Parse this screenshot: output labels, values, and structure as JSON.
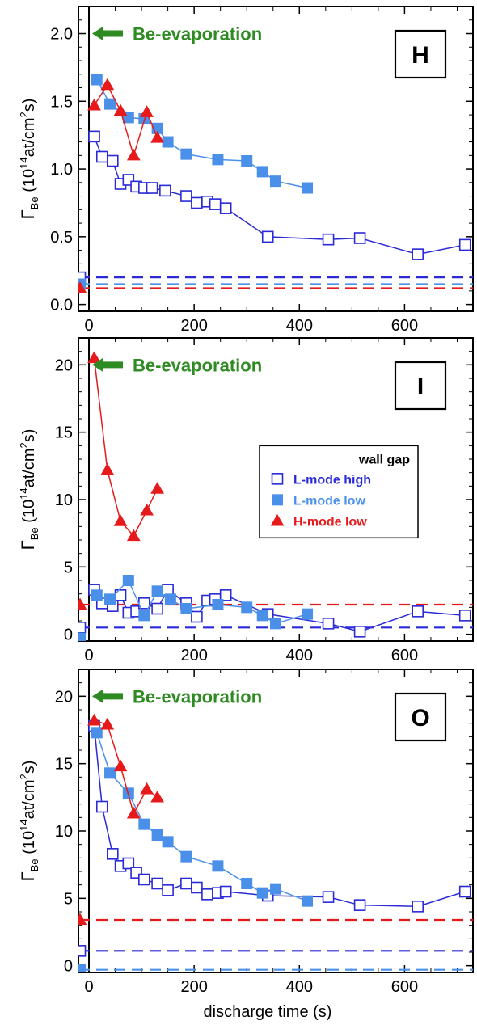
{
  "chart_data": [
    {
      "type": "line",
      "panel_label": "H",
      "annotation": "Be-evaporation",
      "annotation_y": 2.0,
      "ylabel": "Γ",
      "ylabel_sub": "Be",
      "yunit_prefix": "(10",
      "yunit_exp1": "14",
      "yunit_mid": "at/cm",
      "yunit_exp2": "2",
      "yunit_suffix": "s)",
      "xlabel": "",
      "xlim": [
        -20,
        730
      ],
      "ylim": [
        -0.05,
        2.2
      ],
      "xticks": [
        {
          "v": 0,
          "label": "0"
        },
        {
          "v": 200,
          "label": "200"
        },
        {
          "v": 400,
          "label": "400"
        },
        {
          "v": 600,
          "label": "600"
        }
      ],
      "yticks": [
        {
          "v": 0,
          "label": "0.0"
        },
        {
          "v": 0.5,
          "label": "0.5"
        },
        {
          "v": 1.0,
          "label": "1.0"
        },
        {
          "v": 1.5,
          "label": "1.5"
        },
        {
          "v": 2.0,
          "label": "2.0"
        }
      ],
      "series": [
        {
          "name": "L-mode high",
          "marker": "open-square",
          "color": "#2a2ad6",
          "x": [
            10,
            25,
            45,
            60,
            75,
            90,
            105,
            120,
            145,
            185,
            205,
            225,
            240,
            260,
            340,
            455,
            515,
            625,
            715
          ],
          "y": [
            1.24,
            1.09,
            1.06,
            0.89,
            0.92,
            0.87,
            0.86,
            0.86,
            0.84,
            0.8,
            0.75,
            0.76,
            0.74,
            0.71,
            0.5,
            0.48,
            0.49,
            0.37,
            0.44
          ]
        },
        {
          "name": "L-mode low",
          "marker": "filled-square",
          "color": "#4a90e8",
          "x": [
            15,
            40,
            75,
            105,
            130,
            150,
            185,
            245,
            300,
            330,
            355,
            415
          ],
          "y": [
            1.66,
            1.48,
            1.38,
            1.37,
            1.3,
            1.2,
            1.11,
            1.07,
            1.06,
            0.98,
            0.91,
            0.86
          ]
        },
        {
          "name": "H-mode low",
          "marker": "filled-triangle",
          "color": "#e61a1a",
          "x": [
            10,
            35,
            60,
            85,
            110,
            130
          ],
          "y": [
            1.47,
            1.62,
            1.43,
            1.1,
            1.42,
            1.23
          ]
        }
      ],
      "baselines": [
        {
          "y": 0.2,
          "color": "#2a2ad6"
        },
        {
          "y": 0.15,
          "color": "#4a90e8"
        },
        {
          "y": 0.12,
          "color": "#e61a1a"
        }
      ],
      "edge_points": [
        {
          "y": 0.2,
          "marker": "open-square",
          "color": "#2a2ad6"
        },
        {
          "y": 0.15,
          "marker": "filled-square",
          "color": "#4a90e8"
        },
        {
          "y": 0.12,
          "marker": "filled-triangle",
          "color": "#e61a1a"
        }
      ]
    },
    {
      "type": "line",
      "panel_label": "I",
      "annotation": "Be-evaporation",
      "annotation_y": 20,
      "ylabel": "Γ",
      "ylabel_sub": "Be",
      "yunit_prefix": "(10",
      "yunit_exp1": "14",
      "yunit_mid": "at/cm",
      "yunit_exp2": "2",
      "yunit_suffix": "s)",
      "xlabel": "",
      "xlim": [
        -20,
        730
      ],
      "ylim": [
        -0.5,
        22
      ],
      "xticks": [
        {
          "v": 0,
          "label": "0"
        },
        {
          "v": 200,
          "label": "200"
        },
        {
          "v": 400,
          "label": "400"
        },
        {
          "v": 600,
          "label": "600"
        }
      ],
      "yticks": [
        {
          "v": 0,
          "label": "0"
        },
        {
          "v": 5,
          "label": "5"
        },
        {
          "v": 10,
          "label": "10"
        },
        {
          "v": 15,
          "label": "15"
        },
        {
          "v": 20,
          "label": "20"
        }
      ],
      "legend": {
        "title": "wall gap",
        "entries": [
          {
            "label": "L-mode  high",
            "marker": "open-square",
            "color": "#2a2ad6"
          },
          {
            "label": "L-mode  low",
            "marker": "filled-square",
            "color": "#4a90e8"
          },
          {
            "label": "H-mode  low",
            "marker": "filled-triangle",
            "color": "#e61a1a"
          }
        ]
      },
      "series": [
        {
          "name": "L-mode high",
          "marker": "open-square",
          "color": "#2a2ad6",
          "x": [
            10,
            25,
            45,
            60,
            75,
            90,
            105,
            130,
            150,
            185,
            205,
            225,
            240,
            260,
            340,
            455,
            515,
            625,
            715
          ],
          "y": [
            3.3,
            2.3,
            2.1,
            2.9,
            1.6,
            1.7,
            2.3,
            1.9,
            3.3,
            2.3,
            1.3,
            2.5,
            2.6,
            2.9,
            1.5,
            0.8,
            0.2,
            1.7,
            1.4
          ]
        },
        {
          "name": "L-mode low",
          "marker": "filled-square",
          "color": "#4a90e8",
          "x": [
            15,
            40,
            75,
            105,
            130,
            155,
            185,
            245,
            300,
            330,
            355,
            415
          ],
          "y": [
            2.9,
            2.6,
            4.0,
            1.4,
            3.2,
            2.6,
            1.9,
            2.2,
            2.0,
            1.4,
            0.8,
            1.5
          ]
        },
        {
          "name": "H-mode low",
          "marker": "filled-triangle",
          "color": "#e61a1a",
          "x": [
            10,
            35,
            60,
            85,
            110,
            130
          ],
          "y": [
            20.5,
            12.2,
            8.4,
            7.3,
            9.2,
            10.8
          ]
        }
      ],
      "baselines": [
        {
          "y": 2.2,
          "color": "#e61a1a"
        },
        {
          "y": 0.5,
          "color": "#2a2ad6"
        }
      ],
      "edge_points": [
        {
          "y": 2.2,
          "marker": "filled-triangle",
          "color": "#e61a1a"
        },
        {
          "y": 0.5,
          "marker": "open-square",
          "color": "#2a2ad6"
        },
        {
          "y": -0.3,
          "marker": "filled-square",
          "color": "#4a90e8"
        }
      ]
    },
    {
      "type": "line",
      "panel_label": "O",
      "annotation": "Be-evaporation",
      "annotation_y": 20,
      "ylabel": "Γ",
      "ylabel_sub": "Be",
      "yunit_prefix": "(10",
      "yunit_exp1": "14",
      "yunit_mid": "at/cm",
      "yunit_exp2": "2",
      "yunit_suffix": "s)",
      "xlabel": "discharge time (s)",
      "xlim": [
        -20,
        730
      ],
      "ylim": [
        -0.5,
        22
      ],
      "xticks": [
        {
          "v": 0,
          "label": "0"
        },
        {
          "v": 200,
          "label": "200"
        },
        {
          "v": 400,
          "label": "400"
        },
        {
          "v": 600,
          "label": "600"
        }
      ],
      "yticks": [
        {
          "v": 0,
          "label": "0"
        },
        {
          "v": 5,
          "label": "5"
        },
        {
          "v": 10,
          "label": "10"
        },
        {
          "v": 15,
          "label": "15"
        },
        {
          "v": 20,
          "label": "20"
        }
      ],
      "series": [
        {
          "name": "L-mode high",
          "marker": "open-square",
          "color": "#2a2ad6",
          "x": [
            10,
            25,
            45,
            60,
            75,
            90,
            105,
            130,
            150,
            185,
            205,
            225,
            245,
            260,
            340,
            455,
            515,
            625,
            715
          ],
          "y": [
            17.8,
            11.8,
            8.3,
            7.4,
            7.6,
            6.9,
            6.4,
            6.1,
            5.6,
            6.1,
            5.8,
            5.3,
            5.4,
            5.5,
            5.2,
            5.1,
            4.5,
            4.4,
            5.5
          ]
        },
        {
          "name": "L-mode low",
          "marker": "filled-square",
          "color": "#4a90e8",
          "x": [
            15,
            40,
            75,
            105,
            130,
            150,
            185,
            245,
            300,
            330,
            355,
            415
          ],
          "y": [
            17.3,
            14.3,
            12.8,
            10.5,
            9.7,
            9.2,
            8.1,
            7.4,
            6.1,
            5.4,
            5.7,
            4.8
          ]
        },
        {
          "name": "H-mode low",
          "marker": "filled-triangle",
          "color": "#e61a1a",
          "x": [
            10,
            35,
            60,
            85,
            110,
            130
          ],
          "y": [
            18.2,
            17.9,
            14.8,
            11.3,
            13.1,
            12.5
          ]
        }
      ],
      "baselines": [
        {
          "y": 3.4,
          "color": "#e61a1a"
        },
        {
          "y": 1.1,
          "color": "#2a2ad6"
        },
        {
          "y": -0.3,
          "color": "#4a90e8"
        }
      ],
      "edge_points": [
        {
          "y": 3.4,
          "marker": "filled-triangle",
          "color": "#e61a1a"
        },
        {
          "y": 1.1,
          "marker": "open-square",
          "color": "#2a2ad6"
        },
        {
          "y": -0.3,
          "marker": "filled-square",
          "color": "#4a90e8"
        }
      ]
    }
  ]
}
